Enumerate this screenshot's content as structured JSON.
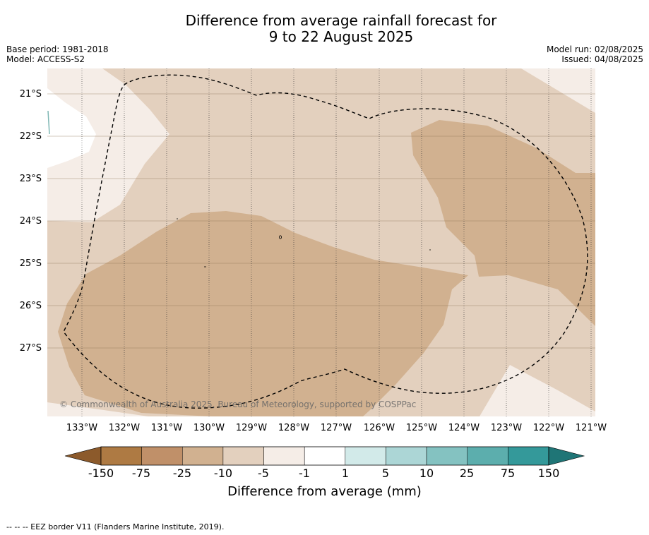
{
  "header": {
    "title_line1": "Difference from average rainfall forecast for",
    "title_line2": "9 to 22 August 2025",
    "base_period": "Base period: 1981-2018",
    "model": "Model: ACCESS-S2",
    "model_run": "Model run: 02/08/2025",
    "issued": "Issued: 04/08/2025"
  },
  "map": {
    "lat_labels": [
      "21°S",
      "22°S",
      "23°S",
      "24°S",
      "25°S",
      "26°S",
      "27°S"
    ],
    "lon_labels": [
      "133°W",
      "132°W",
      "131°W",
      "130°W",
      "129°W",
      "128°W",
      "127°W",
      "126°W",
      "125°W",
      "124°W",
      "123°W",
      "122°W",
      "121°W"
    ],
    "attribution": "© Commonwealth of Australia 2025, Bureau of Meteorology, supported by COSPPac"
  },
  "colorbar": {
    "ticks": [
      "-150",
      "-75",
      "-25",
      "-10",
      "-5",
      "-1",
      "1",
      "5",
      "10",
      "25",
      "75",
      "150"
    ],
    "colors": [
      "#ae7a43",
      "#c09069",
      "#d1b190",
      "#e3d0be",
      "#f5ede7",
      "#ffffff",
      "#d2eae9",
      "#acd6d6",
      "#84c2c1",
      "#5caead",
      "#34999a"
    ],
    "under_color": "#8c5a2b",
    "over_color": "#1f7576",
    "title": "Difference from average (mm)"
  },
  "footer": {
    "legend": "-- -- -- EEZ border V11 (Flanders Marine Institute, 2019)."
  }
}
